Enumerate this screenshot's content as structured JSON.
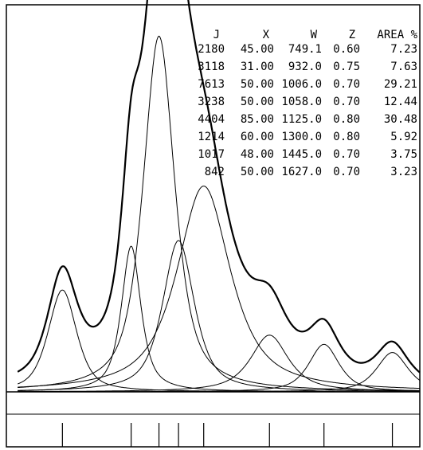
{
  "chart_data": {
    "type": "line",
    "title": "",
    "xlabel": "",
    "ylabel": "",
    "grid": false,
    "legend": "none",
    "x_range": [
      600,
      1700
    ],
    "y_range": [
      0,
      4500
    ],
    "table": {
      "columns": [
        "J",
        "X",
        "W",
        "Z",
        "AREA %"
      ],
      "rows": [
        [
          "2180",
          "45.00",
          "749.1",
          "0.60",
          "7.23"
        ],
        [
          "3118",
          "31.00",
          "932.0",
          "0.75",
          "7.63"
        ],
        [
          "7613",
          "50.00",
          "1006.0",
          "0.70",
          "29.21"
        ],
        [
          "3238",
          "50.00",
          "1058.0",
          "0.70",
          "12.44"
        ],
        [
          "4404",
          "85.00",
          "1125.0",
          "0.80",
          "30.48"
        ],
        [
          "1214",
          "60.00",
          "1300.0",
          "0.80",
          "5.92"
        ],
        [
          "1017",
          "48.00",
          "1445.0",
          "0.70",
          "3.75"
        ],
        [
          "842",
          "50.00",
          "1627.0",
          "0.70",
          "3.23"
        ]
      ]
    },
    "components": [
      {
        "height": 2180,
        "width": 45,
        "center": 749.1,
        "shape": 0.6
      },
      {
        "height": 3118,
        "width": 31,
        "center": 932.0,
        "shape": 0.75
      },
      {
        "height": 7613,
        "width": 50,
        "center": 1006.0,
        "shape": 0.7
      },
      {
        "height": 3238,
        "width": 50,
        "center": 1058.0,
        "shape": 0.7
      },
      {
        "height": 4404,
        "width": 85,
        "center": 1125.0,
        "shape": 0.8
      },
      {
        "height": 1214,
        "width": 60,
        "center": 1300.0,
        "shape": 0.8
      },
      {
        "height": 1017,
        "width": 48,
        "center": 1445.0,
        "shape": 0.7
      },
      {
        "height": 842,
        "width": 50,
        "center": 1627.0,
        "shape": 0.7
      }
    ],
    "peak_markers": [
      749.1,
      932.0,
      1006.0,
      1058.0,
      1125.0,
      1300.0,
      1445.0,
      1627.0
    ]
  }
}
